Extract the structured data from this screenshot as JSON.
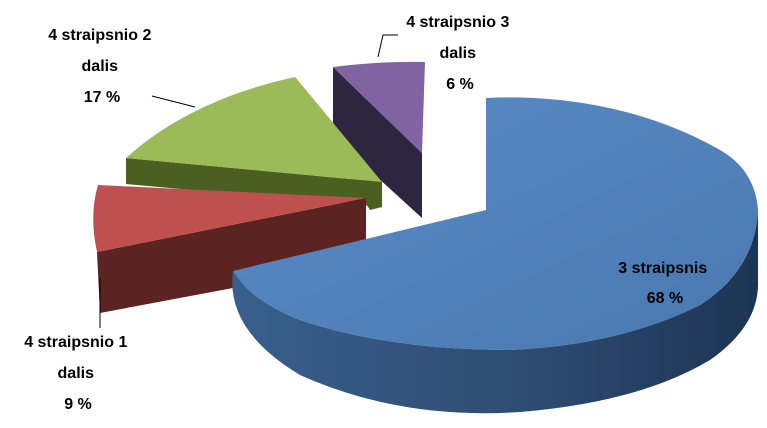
{
  "chart_data": {
    "type": "pie",
    "three_d": true,
    "exploded": true,
    "title": "",
    "slices": [
      {
        "label_lines": [
          "3 straipsnis",
          "68 %"
        ],
        "value": 68,
        "color": "#4F81BD"
      },
      {
        "label_lines": [
          "4 straipsnio 1",
          "dalis",
          "9 %"
        ],
        "value": 9,
        "color": "#C0504D"
      },
      {
        "label_lines": [
          "4 straipsnio 2",
          "dalis",
          "17 %"
        ],
        "value": 17,
        "color": "#9BBB59"
      },
      {
        "label_lines": [
          "4 straipsnio 3",
          "dalis",
          "6 %"
        ],
        "value": 6,
        "color": "#8064A2"
      }
    ]
  }
}
